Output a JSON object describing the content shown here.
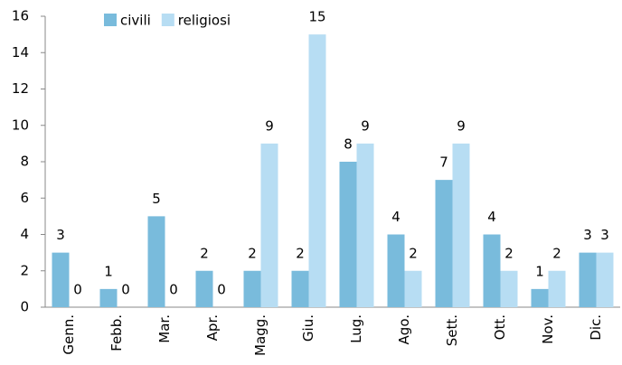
{
  "chart_data": {
    "type": "bar",
    "categories": [
      "Genn.",
      "Febb.",
      "Mar.",
      "Apr.",
      "Magg.",
      "Giu.",
      "Lug.",
      "Ago.",
      "Sett.",
      "Ott.",
      "Nov.",
      "Dic."
    ],
    "series": [
      {
        "name": "civili",
        "color": "#79bbdc",
        "values": [
          3,
          1,
          5,
          2,
          2,
          2,
          8,
          4,
          7,
          4,
          1,
          3
        ]
      },
      {
        "name": "religiosi",
        "color": "#b7ddf3",
        "values": [
          0,
          0,
          0,
          0,
          9,
          15,
          9,
          2,
          9,
          2,
          2,
          3
        ]
      }
    ],
    "ylim": [
      0,
      16
    ],
    "yticks": [
      0,
      2,
      4,
      6,
      8,
      10,
      12,
      14,
      16
    ],
    "grid": false,
    "legend": "top"
  }
}
